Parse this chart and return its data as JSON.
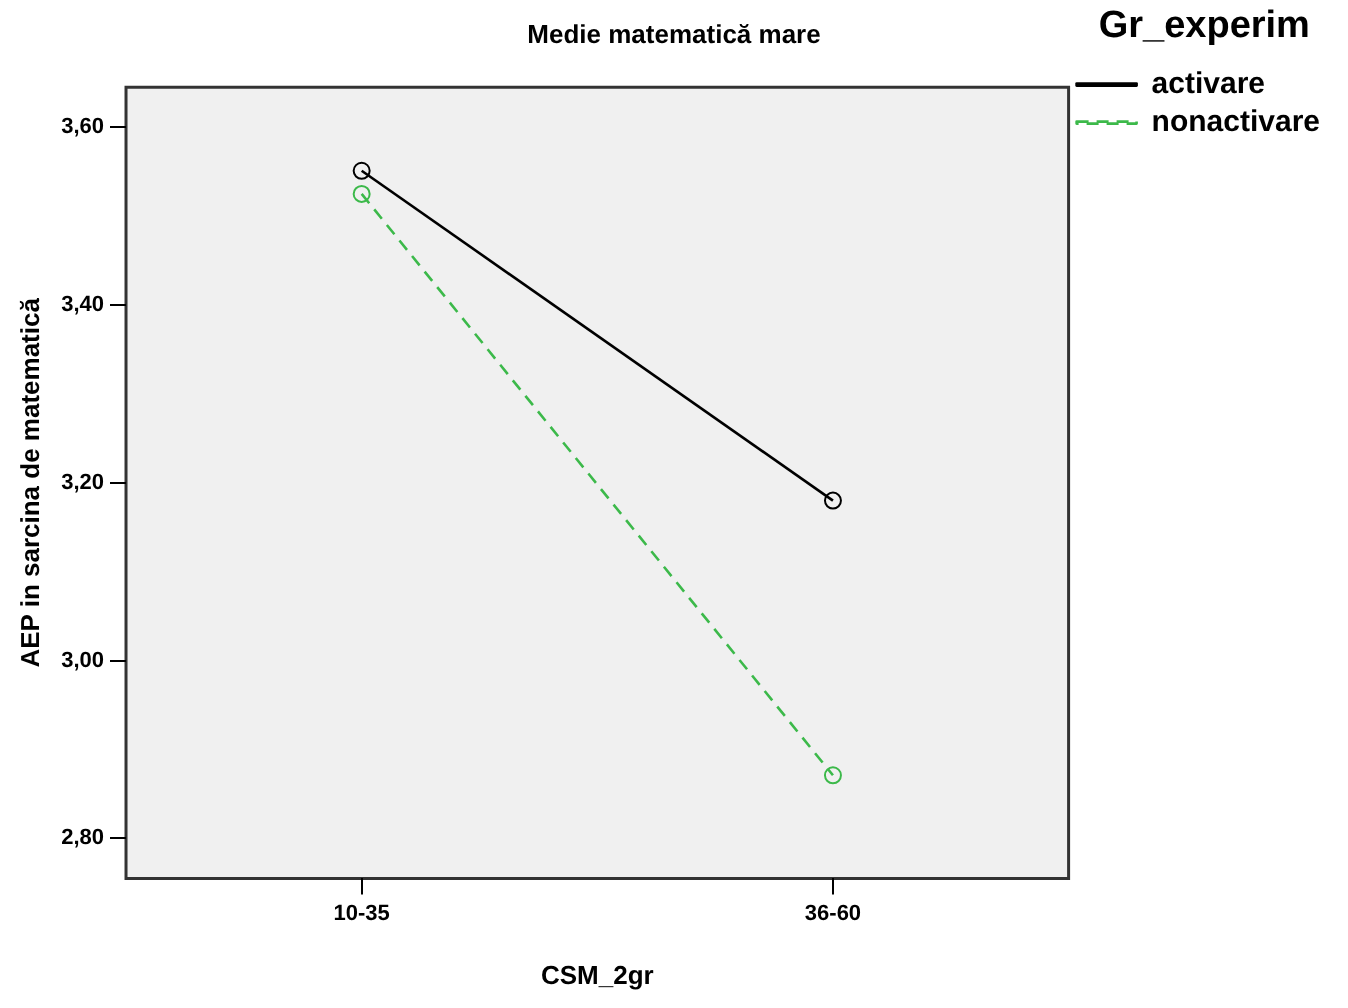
{
  "chart_data": {
    "type": "line",
    "title": "Medie matematică mare",
    "xlabel": "CSM_2gr",
    "ylabel": "AEP in sarcina de matematică",
    "legend_title": "Gr_experim",
    "categories": [
      "10-35",
      "36-60"
    ],
    "series": [
      {
        "name": "activare",
        "color": "#000000",
        "values": [
          3.551,
          3.18
        ],
        "line_style": "solid"
      },
      {
        "name": "nonactivare",
        "color": "#3cb94a",
        "values": [
          3.525,
          2.871
        ],
        "line_style": "dashed"
      }
    ],
    "ylim": [
      2.755,
      3.645
    ],
    "yticks": [
      {
        "value": 2.8,
        "label": "2,80"
      },
      {
        "value": 3.0,
        "label": "3,00"
      },
      {
        "value": 3.2,
        "label": "3,20"
      },
      {
        "value": 3.4,
        "label": "3,40"
      },
      {
        "value": 3.6,
        "label": "3,60"
      }
    ],
    "grid": false,
    "legend": "top right",
    "marker": "circle"
  }
}
